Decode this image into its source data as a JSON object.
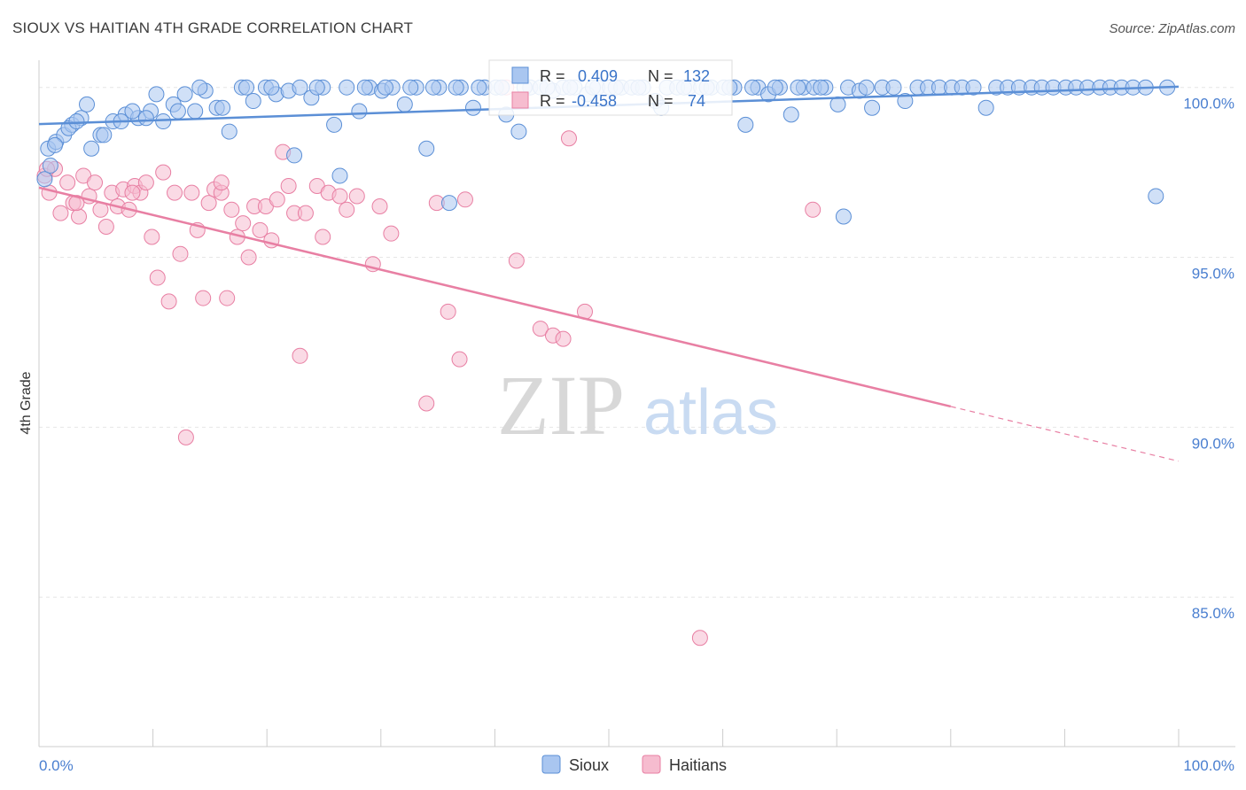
{
  "header": {
    "title": "SIOUX VS HAITIAN 4TH GRADE CORRELATION CHART",
    "source": "Source: ZipAtlas.com"
  },
  "watermark": {
    "zip": "ZIP",
    "atlas": "atlas"
  },
  "legend_box": {
    "rows": [
      {
        "r_label": "R = ",
        "r_value": "0.409",
        "n_label": "N = ",
        "n_value": "132",
        "color": "#5b8fd6"
      },
      {
        "r_label": "R = ",
        "r_value": "-0.458",
        "n_label": "N = ",
        "n_value": "74",
        "color": "#e87fa3"
      }
    ]
  },
  "chart_data": {
    "type": "scatter",
    "title": "SIOUX VS HAITIAN 4TH GRADE CORRELATION CHART",
    "xlabel": "",
    "ylabel": "4th Grade",
    "xlim": [
      0,
      100
    ],
    "ylim": [
      80.6,
      100.8
    ],
    "x_tick_labels": {
      "min": "0.0%",
      "max": "100.0%"
    },
    "y_ticks": [
      {
        "value": 100,
        "label": "100.0%"
      },
      {
        "value": 95,
        "label": "95.0%"
      },
      {
        "value": 90,
        "label": "90.0%"
      },
      {
        "value": 85,
        "label": "85.0%"
      }
    ],
    "series": [
      {
        "name": "Sioux",
        "color": "#5b8fd6",
        "fill": "#a9c6f0",
        "r": 0.409,
        "n": 132,
        "trend": {
          "x0": 0,
          "y0": 98.92,
          "x1": 100,
          "y1": 100.02,
          "dash_from": null
        },
        "points": [
          [
            0.8,
            98.2
          ],
          [
            1.5,
            98.4
          ],
          [
            2.2,
            98.6
          ],
          [
            2.9,
            98.9
          ],
          [
            3.7,
            99.1
          ],
          [
            4.6,
            98.2
          ],
          [
            5.4,
            98.6
          ],
          [
            6.5,
            99.0
          ],
          [
            7.6,
            99.2
          ],
          [
            8.7,
            99.1
          ],
          [
            9.8,
            99.3
          ],
          [
            10.9,
            99.0
          ],
          [
            11.8,
            99.5
          ],
          [
            12.8,
            99.8
          ],
          [
            13.7,
            99.3
          ],
          [
            14.6,
            99.9
          ],
          [
            15.6,
            99.4
          ],
          [
            16.7,
            98.7
          ],
          [
            17.8,
            100.0
          ],
          [
            18.8,
            99.6
          ],
          [
            19.9,
            100.0
          ],
          [
            20.8,
            99.8
          ],
          [
            21.9,
            99.9
          ],
          [
            22.9,
            100.0
          ],
          [
            23.9,
            99.7
          ],
          [
            24.9,
            100.0
          ],
          [
            25.9,
            98.9
          ],
          [
            27.0,
            100.0
          ],
          [
            28.1,
            99.3
          ],
          [
            29.0,
            100.0
          ],
          [
            30.1,
            99.9
          ],
          [
            31.0,
            100.0
          ],
          [
            32.1,
            99.5
          ],
          [
            33.1,
            100.0
          ],
          [
            34.0,
            98.2
          ],
          [
            35.1,
            100.0
          ],
          [
            36.0,
            96.6
          ],
          [
            37.0,
            100.0
          ],
          [
            38.1,
            99.4
          ],
          [
            39.1,
            100.0
          ],
          [
            40.1,
            100.0
          ],
          [
            41.0,
            99.2
          ],
          [
            42.1,
            98.7
          ],
          [
            43.1,
            100.0
          ],
          [
            44.0,
            100.0
          ],
          [
            45.1,
            99.9
          ],
          [
            46.0,
            100.0
          ],
          [
            47.0,
            100.0
          ],
          [
            48.1,
            99.8
          ],
          [
            49.0,
            100.0
          ],
          [
            50.1,
            100.0
          ],
          [
            51.1,
            100.0
          ],
          [
            52.0,
            100.0
          ],
          [
            53.0,
            100.0
          ],
          [
            54.1,
            99.6
          ],
          [
            55.1,
            100.0
          ],
          [
            56.0,
            100.0
          ],
          [
            57.0,
            100.0
          ],
          [
            58.1,
            100.0
          ],
          [
            59.0,
            100.0
          ],
          [
            60.1,
            100.0
          ],
          [
            61.0,
            100.0
          ],
          [
            62.0,
            98.9
          ],
          [
            63.1,
            100.0
          ],
          [
            64.0,
            99.8
          ],
          [
            65.0,
            100.0
          ],
          [
            66.0,
            99.2
          ],
          [
            67.1,
            100.0
          ],
          [
            68.0,
            100.0
          ],
          [
            69.0,
            100.0
          ],
          [
            70.1,
            99.5
          ],
          [
            71.0,
            100.0
          ],
          [
            72.0,
            99.9
          ],
          [
            73.1,
            99.4
          ],
          [
            74.0,
            100.0
          ],
          [
            75.0,
            100.0
          ],
          [
            76.0,
            99.6
          ],
          [
            77.1,
            100.0
          ],
          [
            78.0,
            100.0
          ],
          [
            79.0,
            100.0
          ],
          [
            80.1,
            100.0
          ],
          [
            81.0,
            100.0
          ],
          [
            82.0,
            100.0
          ],
          [
            83.1,
            99.4
          ],
          [
            84.0,
            100.0
          ],
          [
            85.0,
            100.0
          ],
          [
            86.0,
            100.0
          ],
          [
            87.1,
            100.0
          ],
          [
            88.0,
            100.0
          ],
          [
            89.0,
            100.0
          ],
          [
            90.1,
            100.0
          ],
          [
            91.0,
            100.0
          ],
          [
            92.0,
            100.0
          ],
          [
            93.1,
            100.0
          ],
          [
            94.0,
            100.0
          ],
          [
            95.0,
            100.0
          ],
          [
            96.0,
            100.0
          ],
          [
            97.1,
            100.0
          ],
          [
            98.0,
            96.8
          ],
          [
            99.0,
            100.0
          ],
          [
            0.5,
            97.3
          ],
          [
            1.0,
            97.7
          ],
          [
            1.4,
            98.3
          ],
          [
            2.6,
            98.8
          ],
          [
            3.3,
            99.0
          ],
          [
            4.2,
            99.5
          ],
          [
            5.7,
            98.6
          ],
          [
            7.2,
            99.0
          ],
          [
            8.2,
            99.3
          ],
          [
            9.4,
            99.1
          ],
          [
            10.3,
            99.8
          ],
          [
            12.2,
            99.3
          ],
          [
            14.1,
            100.0
          ],
          [
            16.1,
            99.4
          ],
          [
            18.2,
            100.0
          ],
          [
            20.4,
            100.0
          ],
          [
            22.4,
            98.0
          ],
          [
            24.4,
            100.0
          ],
          [
            26.4,
            97.4
          ],
          [
            28.6,
            100.0
          ],
          [
            30.4,
            100.0
          ],
          [
            32.6,
            100.0
          ],
          [
            34.6,
            100.0
          ],
          [
            36.6,
            100.0
          ],
          [
            38.6,
            100.0
          ],
          [
            40.6,
            100.0
          ],
          [
            42.6,
            100.0
          ],
          [
            44.6,
            100.0
          ],
          [
            46.6,
            100.0
          ],
          [
            48.6,
            100.0
          ],
          [
            50.6,
            100.0
          ],
          [
            52.6,
            100.0
          ],
          [
            54.6,
            99.4
          ],
          [
            56.6,
            100.0
          ],
          [
            58.6,
            100.0
          ],
          [
            60.6,
            100.0
          ],
          [
            62.6,
            100.0
          ],
          [
            64.6,
            100.0
          ],
          [
            66.6,
            100.0
          ],
          [
            68.6,
            100.0
          ],
          [
            70.6,
            96.2
          ],
          [
            72.6,
            100.0
          ]
        ]
      },
      {
        "name": "Haitians",
        "color": "#e87fa3",
        "fill": "#f6bccf",
        "r": -0.458,
        "n": 74,
        "trend": {
          "x0": 0,
          "y0": 97.05,
          "x1": 100,
          "y1": 89.0,
          "dash_from": 80
        },
        "points": [
          [
            0.5,
            97.4
          ],
          [
            0.9,
            96.9
          ],
          [
            1.4,
            97.6
          ],
          [
            1.9,
            96.3
          ],
          [
            2.5,
            97.2
          ],
          [
            3.0,
            96.6
          ],
          [
            3.5,
            96.2
          ],
          [
            3.9,
            97.4
          ],
          [
            4.4,
            96.8
          ],
          [
            4.9,
            97.2
          ],
          [
            5.4,
            96.4
          ],
          [
            5.9,
            95.9
          ],
          [
            6.4,
            96.9
          ],
          [
            6.9,
            96.5
          ],
          [
            7.4,
            97.0
          ],
          [
            7.9,
            96.4
          ],
          [
            8.4,
            97.1
          ],
          [
            8.9,
            96.9
          ],
          [
            9.4,
            97.2
          ],
          [
            9.9,
            95.6
          ],
          [
            10.4,
            94.4
          ],
          [
            10.9,
            97.5
          ],
          [
            11.4,
            93.7
          ],
          [
            11.9,
            96.9
          ],
          [
            12.4,
            95.1
          ],
          [
            12.9,
            89.7
          ],
          [
            13.4,
            96.9
          ],
          [
            13.9,
            95.8
          ],
          [
            14.4,
            93.8
          ],
          [
            14.9,
            96.6
          ],
          [
            15.4,
            97.0
          ],
          [
            16.0,
            96.9
          ],
          [
            16.5,
            93.8
          ],
          [
            16.9,
            96.4
          ],
          [
            17.4,
            95.6
          ],
          [
            17.9,
            96.0
          ],
          [
            18.4,
            95.0
          ],
          [
            18.9,
            96.5
          ],
          [
            19.4,
            95.8
          ],
          [
            19.9,
            96.5
          ],
          [
            20.4,
            95.5
          ],
          [
            20.9,
            96.7
          ],
          [
            21.4,
            98.1
          ],
          [
            21.9,
            97.1
          ],
          [
            22.4,
            96.3
          ],
          [
            22.9,
            92.1
          ],
          [
            23.4,
            96.3
          ],
          [
            24.4,
            97.1
          ],
          [
            24.9,
            95.6
          ],
          [
            25.4,
            96.9
          ],
          [
            26.4,
            96.8
          ],
          [
            27.0,
            96.4
          ],
          [
            27.9,
            96.8
          ],
          [
            29.3,
            94.8
          ],
          [
            29.9,
            96.5
          ],
          [
            30.9,
            95.7
          ],
          [
            34.0,
            90.7
          ],
          [
            34.9,
            96.6
          ],
          [
            35.9,
            93.4
          ],
          [
            36.9,
            92.0
          ],
          [
            37.4,
            96.7
          ],
          [
            41.0,
            100.0
          ],
          [
            41.9,
            94.9
          ],
          [
            44.0,
            92.9
          ],
          [
            45.1,
            92.7
          ],
          [
            46.0,
            92.6
          ],
          [
            46.5,
            98.5
          ],
          [
            47.9,
            93.4
          ],
          [
            58.0,
            83.8
          ],
          [
            67.9,
            96.4
          ],
          [
            0.7,
            97.6
          ],
          [
            3.3,
            96.6
          ],
          [
            8.2,
            96.9
          ],
          [
            16.0,
            97.2
          ]
        ]
      }
    ],
    "legend": [
      "Sioux",
      "Haitians"
    ],
    "grid": true
  }
}
